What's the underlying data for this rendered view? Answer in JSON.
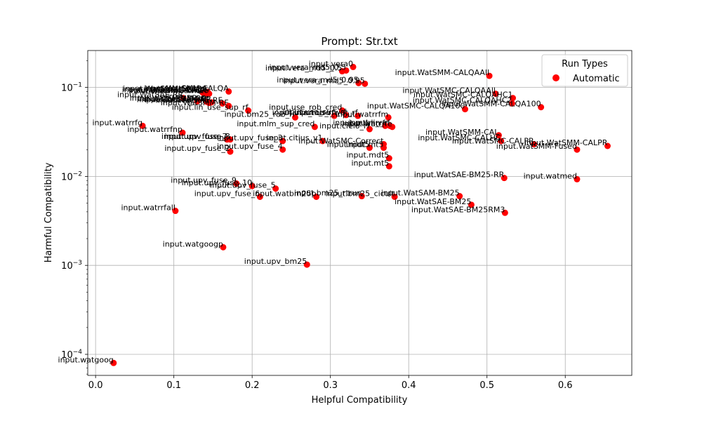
{
  "chart_data": {
    "type": "scatter",
    "title": "Prompt: Str.txt",
    "xlabel": "Helpful Compatibility",
    "ylabel": "Harmful Compatibility",
    "xscale": "linear",
    "yscale": "log",
    "xlim": [
      -0.01,
      0.685
    ],
    "ylim": [
      5.8e-05,
      0.26
    ],
    "xticks": [
      0.0,
      0.1,
      0.2,
      0.3,
      0.4,
      0.5,
      0.6
    ],
    "xtick_labels": [
      "0.0",
      "0.1",
      "0.2",
      "0.3",
      "0.4",
      "0.5",
      "0.6"
    ],
    "yticks": [
      0.0001,
      0.001,
      0.01,
      0.1
    ],
    "ytick_exponents": [
      "−4",
      "−3",
      "−2",
      "−1"
    ],
    "ytick_base": "10",
    "grid": true,
    "legend": {
      "title": "Run Types",
      "placement": "top-right",
      "entries": [
        "Automatic"
      ]
    },
    "colors": {
      "point": "#ff0000",
      "grid": "#b0b0b0"
    },
    "series": [
      {
        "name": "Automatic",
        "points": [
          {
            "label": "input.vera0",
            "x": 0.329,
            "y": 0.17
          },
          {
            "label": "input.vera_md5_0.5",
            "x": 0.315,
            "y": 0.152
          },
          {
            "label": "input.vera_md5_0.5",
            "x": 0.32,
            "y": 0.155
          },
          {
            "label": "input.vera_md5_0.95",
            "x": 0.336,
            "y": 0.112
          },
          {
            "label": "input.vera_md5_0.95",
            "x": 0.344,
            "y": 0.11
          },
          {
            "label": "input.WatSMM-CALQAAll",
            "x": 0.503,
            "y": 0.135
          },
          {
            "label": "input.WatSMC-CALQAAll",
            "x": 0.511,
            "y": 0.085
          },
          {
            "label": "input.WatSMC-CALQAHC1",
            "x": 0.533,
            "y": 0.076
          },
          {
            "label": "input.WatSMC-CALQAHC2",
            "x": 0.532,
            "y": 0.066
          },
          {
            "label": "input.WatSMM-CALQA100",
            "x": 0.569,
            "y": 0.06
          },
          {
            "label": "input.WatSMC-CALQA100",
            "x": 0.472,
            "y": 0.057
          },
          {
            "label": "input.WatSMM-CAL",
            "x": 0.515,
            "y": 0.029
          },
          {
            "label": "input.WatSMC-CALHC",
            "x": 0.518,
            "y": 0.025
          },
          {
            "label": "input.WatSMM-CALPR",
            "x": 0.654,
            "y": 0.022
          },
          {
            "label": "input.WatSMC-CALPR",
            "x": 0.56,
            "y": 0.023
          },
          {
            "label": "input.WatSMM-Fused",
            "x": 0.615,
            "y": 0.02
          },
          {
            "label": "input.WatSAE-BM25-RR",
            "x": 0.522,
            "y": 0.0096
          },
          {
            "label": "input.watmed",
            "x": 0.615,
            "y": 0.0093
          },
          {
            "label": "input.WatSAM-BM25",
            "x": 0.465,
            "y": 0.006
          },
          {
            "label": "input.WatSAE-BM25",
            "x": 0.48,
            "y": 0.0048
          },
          {
            "label": "input.WatSAE-BM25RM3",
            "x": 0.523,
            "y": 0.0039
          },
          {
            "label": "input.bm25_rtrun",
            "x": 0.34,
            "y": 0.006
          },
          {
            "label": "input.bm25_cicuit",
            "x": 0.382,
            "y": 0.0059
          },
          {
            "label": "input.WatSMM-CALQA",
            "x": 0.17,
            "y": 0.09
          },
          {
            "label": "input.WatSMM-CALQA",
            "x": 0.143,
            "y": 0.089
          },
          {
            "label": "input.WatSMC-CALQA",
            "x": 0.14,
            "y": 0.087
          },
          {
            "label": "input.WatSMC-RFQA",
            "x": 0.142,
            "y": 0.085
          },
          {
            "label": "input.WatSMC-S2",
            "x": 0.137,
            "y": 0.087
          },
          {
            "label": "input.watbm25",
            "x": 0.145,
            "y": 0.085
          },
          {
            "label": "input.WatSAE-RR",
            "x": 0.112,
            "y": 0.076
          },
          {
            "label": "input.WatSMC-RR",
            "x": 0.13,
            "y": 0.07
          },
          {
            "label": "input.WatSMM-RR",
            "x": 0.142,
            "y": 0.069
          },
          {
            "label": "input.WatSAM-RR",
            "x": 0.148,
            "y": 0.068
          },
          {
            "label": "input.WatSAE-RFS",
            "x": 0.145,
            "y": 0.067
          },
          {
            "label": "input.WatSMC-RF",
            "x": 0.162,
            "y": 0.066
          },
          {
            "label": "input.WatSMM-RF",
            "x": 0.17,
            "y": 0.062
          },
          {
            "label": "input.lin_use_sup_rf",
            "x": 0.195,
            "y": 0.055
          },
          {
            "label": "input.use_rob_cred",
            "x": 0.315,
            "y": 0.055
          },
          {
            "label": "input.bm25_rob_rf",
            "x": 0.255,
            "y": 0.046
          },
          {
            "label": "input.use_rob_rf",
            "x": 0.305,
            "y": 0.048
          },
          {
            "label": "input.use_sup_rf",
            "x": 0.32,
            "y": 0.049
          },
          {
            "label": "input.use_wat_rf",
            "x": 0.335,
            "y": 0.048
          },
          {
            "label": "input.watrrfm",
            "x": 0.374,
            "y": 0.046
          },
          {
            "label": "input.mlm_sup_cred",
            "x": 0.28,
            "y": 0.036
          },
          {
            "label": "input.cielo_rf",
            "x": 0.35,
            "y": 0.034
          },
          {
            "label": "input.mtlm_rf",
            "x": 0.37,
            "y": 0.037
          },
          {
            "label": "input.lin_rf",
            "x": 0.376,
            "y": 0.037
          },
          {
            "label": "input.watrrfe",
            "x": 0.379,
            "y": 0.036
          },
          {
            "label": "input.watrrfg",
            "x": 0.06,
            "y": 0.037
          },
          {
            "label": "input.watrrfnp",
            "x": 0.111,
            "y": 0.031
          },
          {
            "label": "input.upv_fuse_7",
            "x": 0.168,
            "y": 0.026
          },
          {
            "label": "input.upv_fuse_8",
            "x": 0.172,
            "y": 0.026
          },
          {
            "label": "input.upv_fuse_3",
            "x": 0.239,
            "y": 0.025
          },
          {
            "label": "input.citius_v1",
            "x": 0.29,
            "y": 0.025
          },
          {
            "label": "input.WatSMC-Correct",
            "x": 0.368,
            "y": 0.023
          },
          {
            "label": "input.mdt5",
            "x": 0.35,
            "y": 0.021
          },
          {
            "label": "input.mt5",
            "x": 0.368,
            "y": 0.021
          },
          {
            "label": "input.mdt5",
            "x": 0.375,
            "y": 0.016
          },
          {
            "label": "input.mt5",
            "x": 0.375,
            "y": 0.013
          },
          {
            "label": "input.upv_fuse_2",
            "x": 0.172,
            "y": 0.019
          },
          {
            "label": "input.upv_fuse_4",
            "x": 0.239,
            "y": 0.02
          },
          {
            "label": "input.upv_fuse_9",
            "x": 0.18,
            "y": 0.0083
          },
          {
            "label": "input.upv_fuse_10",
            "x": 0.2,
            "y": 0.0078
          },
          {
            "label": "input.upv_fuse_5",
            "x": 0.23,
            "y": 0.0073
          },
          {
            "label": "input.upv_fuse_6",
            "x": 0.21,
            "y": 0.0059
          },
          {
            "label": "input.watbm25p",
            "x": 0.282,
            "y": 0.0059
          },
          {
            "label": "input.watrrfall",
            "x": 0.102,
            "y": 0.0041
          },
          {
            "label": "input.watgoogp",
            "x": 0.163,
            "y": 0.0016
          },
          {
            "label": "input.upv_bm25",
            "x": 0.27,
            "y": 0.00102
          },
          {
            "label": "input.watgoog",
            "x": 0.023,
            "y": 8e-05
          }
        ]
      }
    ]
  }
}
